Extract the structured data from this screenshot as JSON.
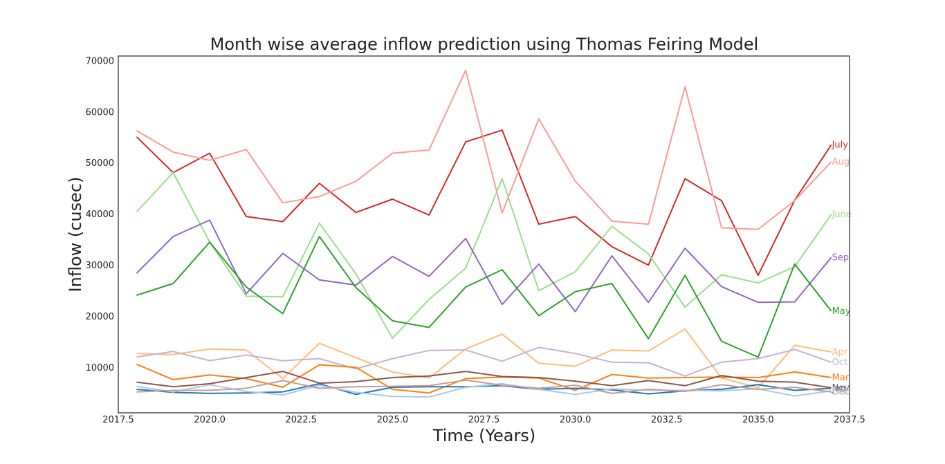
{
  "chart_data": {
    "type": "line",
    "title": "Month wise average inflow prediction using Thomas Feiring Model",
    "xlabel": "Time (Years)",
    "ylabel": "Inflow (cusec)",
    "xlim": [
      2017.5,
      2037.5
    ],
    "ylim": [
      1200,
      71000
    ],
    "xticks": [
      2017.5,
      2020.0,
      2022.5,
      2025.0,
      2027.5,
      2030.0,
      2032.5,
      2035.0,
      2037.5
    ],
    "xtick_labels": [
      "2017.5",
      "2020.0",
      "2022.5",
      "2025.0",
      "2027.5",
      "2030.0",
      "2032.5",
      "2035.0",
      "2037.5"
    ],
    "yticks": [
      10000,
      20000,
      30000,
      40000,
      50000,
      60000,
      70000
    ],
    "ytick_labels": [
      "10000",
      "20000",
      "30000",
      "40000",
      "50000",
      "60000",
      "70000"
    ],
    "grid": false,
    "x": [
      2018,
      2019,
      2020,
      2021,
      2022,
      2023,
      2024,
      2025,
      2026,
      2027,
      2028,
      2029,
      2030,
      2031,
      2032,
      2033,
      2034,
      2035,
      2036,
      2037
    ],
    "series": [
      {
        "name": "July",
        "color": "#d62728",
        "values": [
          55200,
          48200,
          52000,
          39600,
          38600,
          46100,
          40400,
          43000,
          39900,
          54200,
          56500,
          38100,
          39600,
          33700,
          30100,
          47000,
          42700,
          28100,
          42800,
          53600
        ]
      },
      {
        "name": "Aug",
        "color": "#ff9896",
        "values": [
          56400,
          52200,
          50600,
          52700,
          42300,
          43500,
          46500,
          52000,
          52600,
          68200,
          40300,
          58700,
          46500,
          38700,
          38100,
          65000,
          37400,
          37100,
          42700,
          50300
        ]
      },
      {
        "name": "June",
        "color": "#98df8a",
        "values": [
          40500,
          48200,
          34600,
          24000,
          23900,
          38300,
          28400,
          15800,
          23400,
          29500,
          47000,
          25100,
          28800,
          37700,
          32300,
          21900,
          28200,
          26600,
          29800,
          40000
        ]
      },
      {
        "name": "Sep",
        "color": "#9467bd",
        "values": [
          28500,
          35700,
          38900,
          24500,
          32400,
          27200,
          26200,
          31800,
          27900,
          35300,
          22400,
          30300,
          21000,
          31900,
          22800,
          33400,
          25900,
          22800,
          22900,
          31600
        ]
      },
      {
        "name": "May",
        "color": "#2ca02c",
        "values": [
          24200,
          26500,
          34600,
          25800,
          20600,
          35700,
          25700,
          19200,
          17900,
          25800,
          29200,
          20200,
          24900,
          26500,
          15700,
          28100,
          15200,
          12100,
          30300,
          21100
        ]
      },
      {
        "name": "Apr",
        "color": "#ffbb78",
        "values": [
          12800,
          12600,
          13700,
          13500,
          7900,
          14800,
          12000,
          9200,
          8000,
          13700,
          16600,
          10900,
          10300,
          13500,
          13300,
          17600,
          8000,
          6100,
          14400,
          13100
        ]
      },
      {
        "name": "Oct",
        "color": "#c5b0d5",
        "values": [
          12100,
          13200,
          11400,
          12500,
          11400,
          11800,
          9800,
          11800,
          13400,
          13500,
          11300,
          14000,
          12800,
          11100,
          11000,
          8400,
          11100,
          11800,
          13600,
          11100
        ]
      },
      {
        "name": "Mar",
        "color": "#ff7f0e",
        "values": [
          10700,
          7700,
          8600,
          7900,
          6200,
          10600,
          10100,
          5800,
          5100,
          7900,
          8200,
          8000,
          5600,
          8700,
          8000,
          8100,
          8200,
          8100,
          9200,
          8100
        ]
      },
      {
        "name": "Nov",
        "color": "#8c564b",
        "values": [
          7200,
          6300,
          6900,
          8100,
          9300,
          7000,
          7300,
          8100,
          8400,
          9300,
          8300,
          8100,
          7400,
          6500,
          7500,
          6500,
          8500,
          7400,
          7200,
          6100
        ]
      },
      {
        "name": "Jan",
        "color": "#1f77b4",
        "values": [
          5800,
          5200,
          5000,
          5100,
          5300,
          6900,
          4800,
          6200,
          6300,
          6300,
          6500,
          5800,
          6000,
          5700,
          4900,
          5500,
          5800,
          6700,
          5600,
          6000
        ]
      },
      {
        "name": "Feb",
        "color": "#aec7e8",
        "values": [
          6400,
          5300,
          6700,
          5400,
          4700,
          6600,
          5200,
          4400,
          4300,
          6200,
          6900,
          5800,
          4800,
          5900,
          5600,
          5600,
          5500,
          5900,
          4500,
          5500
        ]
      },
      {
        "name": "Dec",
        "color": "#c49c94",
        "values": [
          5300,
          5600,
          5600,
          6000,
          7500,
          6000,
          6300,
          6400,
          6500,
          7600,
          6600,
          6000,
          6600,
          5000,
          5800,
          5400,
          6700,
          5800,
          6200,
          5300
        ]
      }
    ]
  }
}
